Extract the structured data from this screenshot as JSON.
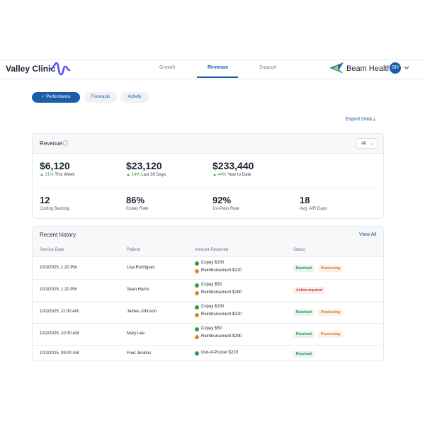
{
  "header": {
    "brand": "Valley Clinic",
    "nav": [
      "Growth",
      "Revenue",
      "Support"
    ],
    "active_nav": 1,
    "partner": "Beam Health",
    "avatar": "SH"
  },
  "tabs": {
    "items": [
      "Performance",
      "Forecasts",
      "Activity"
    ],
    "active": 0
  },
  "export": "Export Data",
  "revenue": {
    "title": "Revenue",
    "filter": "All",
    "metrics": [
      {
        "value": "$6,120",
        "change": "21%",
        "period": "This Week"
      },
      {
        "value": "$23,120",
        "change": "14%",
        "period": "Last 30 Days"
      },
      {
        "value": "$233,440",
        "change": "44%",
        "period": "Year to Date"
      }
    ],
    "stats": [
      {
        "value": "12",
        "label": "Coding Backlog"
      },
      {
        "value": "86%",
        "label": "Copay Rate"
      },
      {
        "value": "92%",
        "label": "1st-Pass Rate"
      },
      {
        "value": "18",
        "label": "Avg. A/R Days"
      }
    ]
  },
  "history": {
    "title": "Recent history",
    "view_all": "View All",
    "columns": [
      "Service Date",
      "Patient",
      "Amount Received",
      "Status"
    ],
    "rows": [
      {
        "date": "10/3/2025, 1:20 PM",
        "patient": "Lisa Rodriguez",
        "amounts": [
          {
            "text": "Copay $150",
            "color": "#2e9e4a"
          },
          {
            "text": "Reimbursement $220",
            "color": "#e08a1e"
          }
        ],
        "statuses": [
          {
            "label": "Received",
            "color": "#1e8a3e"
          },
          {
            "label": "Processing",
            "color": "#c97a12"
          }
        ]
      },
      {
        "date": "10/3/2025, 1:20 PM",
        "patient": "Sean Harris",
        "amounts": [
          {
            "text": "Copay $50",
            "color": "#2e9e4a"
          },
          {
            "text": "Reimbursement $290",
            "color": "#e08a1e"
          }
        ],
        "statuses": [
          {
            "label": "Action required",
            "color": "#c0392b"
          }
        ]
      },
      {
        "date": "10/2/2025, 11:00 AM",
        "patient": "James Johnson",
        "amounts": [
          {
            "text": "Copay $150",
            "color": "#2e9e4a"
          },
          {
            "text": "Reimbursement $220",
            "color": "#e08a1e"
          }
        ],
        "statuses": [
          {
            "label": "Received",
            "color": "#1e8a3e"
          },
          {
            "label": "Processing",
            "color": "#c97a12"
          }
        ]
      },
      {
        "date": "10/2/2025, 10:30 AM",
        "patient": "Mary Lee",
        "amounts": [
          {
            "text": "Copay $50",
            "color": "#2e9e4a"
          },
          {
            "text": "Reimbursement $290",
            "color": "#e08a1e"
          }
        ],
        "statuses": [
          {
            "label": "Received",
            "color": "#1e8a3e"
          },
          {
            "label": "Processing",
            "color": "#c97a12"
          }
        ]
      },
      {
        "date": "10/2/2025, 09:00 AM",
        "patient": "Fred Jenkins",
        "amounts": [
          {
            "text": "Out-of-Pocket $220",
            "color": "#2e9e4a"
          }
        ],
        "statuses": [
          {
            "label": "Received",
            "color": "#1e8a3e"
          }
        ]
      }
    ]
  }
}
